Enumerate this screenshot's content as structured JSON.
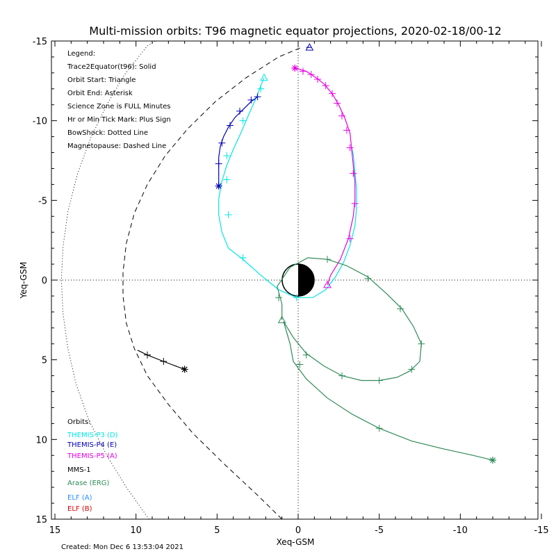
{
  "chart_data": {
    "type": "line",
    "title": "Multi-mission orbits: T96 magnetic equator projections, 2020-02-18/00-12",
    "xlabel": "Xeq-GSM",
    "ylabel": "Yeq-GSM",
    "xlim": [
      15,
      -15
    ],
    "ylim": [
      15,
      -15
    ],
    "x_ticks": [
      "15",
      "10",
      "5",
      "0",
      "-5",
      "-10",
      "-15"
    ],
    "y_ticks": [
      "-15",
      "-10",
      "-5",
      "0",
      "5",
      "10",
      "15"
    ],
    "grid": "dotted zero lines",
    "created": "Created: Mon Dec  6 13:53:04 2021",
    "legend": [
      "Legend:",
      "Trace2Equator(t96): Solid",
      "Orbit Start: Triangle",
      "Orbit End: Asterisk",
      "Science Zone is FULL Minutes",
      "Hr or Min Tick Mark: Plus Sign",
      "BowShock: Dotted Line",
      "Magnetopause: Dashed Line"
    ],
    "orbits_title": "Orbits:",
    "series": [
      {
        "name": "THEMIS-P3 (D)",
        "color": "#00e5e5",
        "points": [
          [
            2.1,
            -12.7
          ],
          [
            2.3,
            -12.2
          ],
          [
            2.6,
            -11.4
          ],
          [
            3.0,
            -10.5
          ],
          [
            3.5,
            -9.3
          ],
          [
            4.0,
            -8.2
          ],
          [
            4.4,
            -7.2
          ],
          [
            4.7,
            -6.2
          ],
          [
            4.9,
            -5.1
          ],
          [
            4.9,
            -4.1
          ],
          [
            4.7,
            -3.0
          ],
          [
            4.3,
            -2.0
          ],
          [
            3.4,
            -1.3
          ],
          [
            2.3,
            -0.3
          ],
          [
            1.2,
            0.6
          ],
          [
            0.1,
            1.1
          ],
          [
            -0.9,
            1.1
          ],
          [
            -1.7,
            0.6
          ],
          [
            -2.3,
            -0.2
          ],
          [
            -2.8,
            -1.1
          ],
          [
            -3.2,
            -2.2
          ],
          [
            -3.5,
            -3.4
          ],
          [
            -3.6,
            -4.5
          ],
          [
            -3.6,
            -5.7
          ],
          [
            -3.5,
            -6.8
          ],
          [
            -3.4,
            -7.9
          ],
          [
            -3.3,
            -8.3
          ]
        ],
        "ticks": [
          [
            2.3,
            -12.0
          ],
          [
            3.4,
            -10.0
          ],
          [
            4.4,
            -7.8
          ],
          [
            4.4,
            -6.3
          ],
          [
            4.3,
            -4.1
          ],
          [
            3.4,
            -1.4
          ],
          [
            0.1,
            1.1
          ]
        ],
        "start": [
          2.1,
          -12.7
        ]
      },
      {
        "name": "THEMIS-P4 (E)",
        "color": "#0000b4",
        "points": [
          [
            2.5,
            -11.5
          ],
          [
            2.9,
            -11.2
          ],
          [
            3.4,
            -10.7
          ],
          [
            3.9,
            -10.2
          ],
          [
            4.3,
            -9.6
          ],
          [
            4.6,
            -9.0
          ],
          [
            4.8,
            -8.4
          ],
          [
            4.9,
            -7.7
          ],
          [
            4.9,
            -6.9
          ],
          [
            4.9,
            -5.9
          ]
        ],
        "ticks": [
          [
            2.5,
            -11.5
          ],
          [
            2.9,
            -11.3
          ],
          [
            3.6,
            -10.6
          ],
          [
            4.2,
            -9.7
          ],
          [
            4.7,
            -8.6
          ],
          [
            4.9,
            -7.3
          ]
        ],
        "start": [
          -0.7,
          -14.6
        ],
        "end": [
          4.9,
          -5.9
        ],
        "extra": [
          [
            -0.5,
            -14.6
          ],
          [
            -0.8,
            -14.6
          ]
        ]
      },
      {
        "name": "THEMIS-P5 (A)",
        "color": "#e600e6",
        "points": [
          [
            0.2,
            -13.3
          ],
          [
            -0.5,
            -13.1
          ],
          [
            -1.1,
            -12.7
          ],
          [
            -1.6,
            -12.3
          ],
          [
            -2.1,
            -11.7
          ],
          [
            -2.5,
            -11.0
          ],
          [
            -2.9,
            -10.1
          ],
          [
            -3.2,
            -9.2
          ],
          [
            -3.3,
            -8.2
          ],
          [
            -3.4,
            -7.2
          ],
          [
            -3.5,
            -6.2
          ],
          [
            -3.5,
            -5.0
          ],
          [
            -3.4,
            -4.0
          ],
          [
            -3.1,
            -2.6
          ],
          [
            -2.6,
            -1.3
          ],
          [
            -2.0,
            -0.3
          ],
          [
            -1.8,
            0.3
          ]
        ],
        "ticks": [
          [
            0.2,
            -13.3
          ],
          [
            -0.3,
            -13.1
          ],
          [
            -0.8,
            -12.9
          ],
          [
            -1.2,
            -12.6
          ],
          [
            -1.7,
            -12.2
          ],
          [
            -2.1,
            -11.7
          ],
          [
            -2.4,
            -11.1
          ],
          [
            -2.7,
            -10.3
          ],
          [
            -3.0,
            -9.4
          ],
          [
            -3.2,
            -8.3
          ],
          [
            -3.4,
            -6.7
          ],
          [
            -3.5,
            -4.8
          ],
          [
            -3.2,
            -2.6
          ]
        ],
        "start": [
          -1.8,
          0.3
        ],
        "end": [
          0.2,
          -13.3
        ]
      },
      {
        "name": "MMS-1",
        "color": "#000000",
        "points": [
          [
            9.9,
            4.4
          ],
          [
            9.3,
            4.7
          ],
          [
            8.3,
            5.1
          ],
          [
            7.8,
            5.3
          ],
          [
            7.0,
            5.6
          ]
        ],
        "ticks": [
          [
            9.3,
            4.7
          ],
          [
            8.3,
            5.1
          ]
        ],
        "end": [
          7.0,
          5.6
        ]
      },
      {
        "name": "Arase (ERG)",
        "color": "#2e8b57",
        "points": [
          [
            1.0,
            2.5
          ],
          [
            1.0,
            1.5
          ],
          [
            1.3,
            0.4
          ],
          [
            0.5,
            -0.8
          ],
          [
            -0.6,
            -1.4
          ],
          [
            -1.8,
            -1.3
          ],
          [
            -3.0,
            -0.9
          ],
          [
            -4.3,
            -0.2
          ],
          [
            -5.5,
            0.9
          ],
          [
            -6.4,
            1.8
          ],
          [
            -7.1,
            2.9
          ],
          [
            -7.6,
            4.0
          ],
          [
            -7.5,
            5.1
          ],
          [
            -6.9,
            5.7
          ],
          [
            -6.1,
            6.1
          ],
          [
            -5.0,
            6.3
          ],
          [
            -3.9,
            6.3
          ],
          [
            -2.7,
            6.0
          ],
          [
            -1.6,
            5.4
          ],
          [
            -0.5,
            4.6
          ],
          [
            0.3,
            3.6
          ],
          [
            0.9,
            2.6
          ],
          [
            0.5,
            4.0
          ],
          [
            0.3,
            5.1
          ],
          [
            -0.5,
            6.2
          ],
          [
            -1.8,
            7.4
          ],
          [
            -3.3,
            8.4
          ],
          [
            -5.0,
            9.3
          ],
          [
            -7.0,
            10.1
          ],
          [
            -9.0,
            10.6
          ],
          [
            -10.8,
            11.0
          ],
          [
            -12.0,
            11.3
          ]
        ],
        "ticks": [
          [
            -1.8,
            -1.3
          ],
          [
            -4.3,
            -0.1
          ],
          [
            -6.3,
            1.8
          ],
          [
            -7.6,
            4.0
          ],
          [
            -7.0,
            5.6
          ],
          [
            -5.0,
            6.3
          ],
          [
            -2.7,
            6.0
          ],
          [
            -0.5,
            4.7
          ],
          [
            1.2,
            1.1
          ],
          [
            -0.1,
            5.3
          ],
          [
            -5.0,
            9.3
          ]
        ],
        "start": [
          1.0,
          2.5
        ],
        "end": [
          -12.0,
          11.3
        ]
      },
      {
        "name": "ELF (A)",
        "color": "#1e90ff"
      },
      {
        "name": "ELF (B)",
        "color": "#e00000"
      }
    ],
    "magnetopause": [
      [
        1.0,
        15
      ],
      [
        2.5,
        13.5
      ],
      [
        4.5,
        11.6
      ],
      [
        6.5,
        9.6
      ],
      [
        8.0,
        7.8
      ],
      [
        9.3,
        6.0
      ],
      [
        10.1,
        4.3
      ],
      [
        10.6,
        2.7
      ],
      [
        10.8,
        1.0
      ],
      [
        10.8,
        -0.5
      ],
      [
        10.6,
        -2.3
      ],
      [
        10.1,
        -4.2
      ],
      [
        9.3,
        -6.0
      ],
      [
        8.2,
        -7.8
      ],
      [
        6.8,
        -9.5
      ],
      [
        5.1,
        -11.2
      ],
      [
        3.2,
        -12.7
      ],
      [
        1.2,
        -14.0
      ],
      [
        -0.2,
        -14.6
      ]
    ],
    "bowshock": [
      [
        9.2,
        15
      ],
      [
        10.6,
        13.0
      ],
      [
        11.8,
        11.0
      ],
      [
        12.9,
        8.8
      ],
      [
        13.7,
        6.5
      ],
      [
        14.2,
        4.3
      ],
      [
        14.5,
        2.1
      ],
      [
        14.6,
        0
      ],
      [
        14.5,
        -2.1
      ],
      [
        14.2,
        -4.3
      ],
      [
        13.6,
        -6.7
      ],
      [
        12.8,
        -8.9
      ],
      [
        11.8,
        -11.0
      ],
      [
        10.7,
        -12.9
      ],
      [
        9.3,
        -14.7
      ],
      [
        8.8,
        -15
      ]
    ]
  }
}
